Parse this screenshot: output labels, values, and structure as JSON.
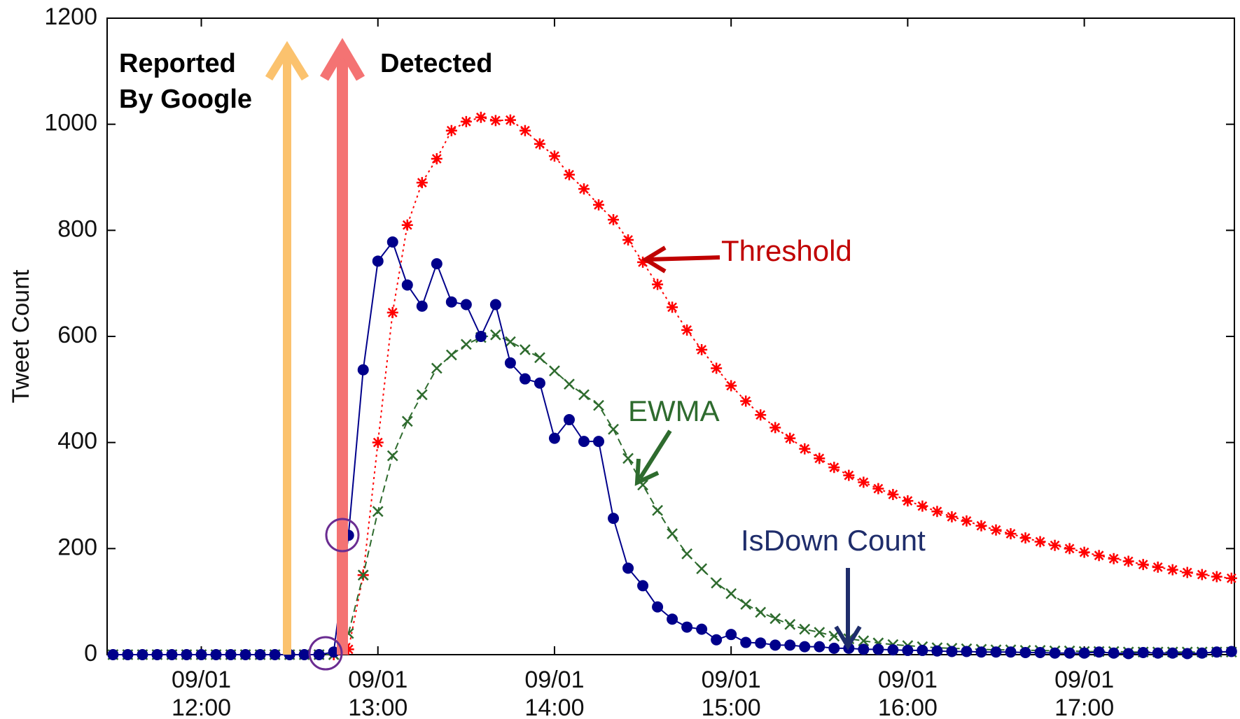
{
  "chart_data": {
    "type": "line",
    "y_label": "Tweet Count",
    "annotations": [
      "Reported",
      "By Google",
      "Detected"
    ],
    "x": [
      "09/01 11:30",
      "09/01 11:35",
      "09/01 11:40",
      "09/01 11:45",
      "09/01 11:50",
      "09/01 11:55",
      "09/01 12:00",
      "09/01 12:05",
      "09/01 12:10",
      "09/01 12:15",
      "09/01 12:20",
      "09/01 12:25",
      "09/01 12:30",
      "09/01 12:35",
      "09/01 12:40",
      "09/01 12:45",
      "09/01 12:50",
      "09/01 12:55",
      "09/01 13:00",
      "09/01 13:05",
      "09/01 13:10",
      "09/01 13:15",
      "09/01 13:20",
      "09/01 13:25",
      "09/01 13:30",
      "09/01 13:35",
      "09/01 13:40",
      "09/01 13:45",
      "09/01 13:50",
      "09/01 13:55",
      "09/01 14:00",
      "09/01 14:05",
      "09/01 14:10",
      "09/01 14:15",
      "09/01 14:20",
      "09/01 14:25",
      "09/01 14:30",
      "09/01 14:35",
      "09/01 14:40",
      "09/01 14:45",
      "09/01 14:50",
      "09/01 14:55",
      "09/01 15:00",
      "09/01 15:05",
      "09/01 15:10",
      "09/01 15:15",
      "09/01 15:20",
      "09/01 15:25",
      "09/01 15:30",
      "09/01 15:35",
      "09/01 15:40",
      "09/01 15:45",
      "09/01 15:50",
      "09/01 15:55",
      "09/01 16:00",
      "09/01 16:05",
      "09/01 16:10",
      "09/01 16:15",
      "09/01 16:20",
      "09/01 16:25",
      "09/01 16:30",
      "09/01 16:35",
      "09/01 16:40",
      "09/01 16:45",
      "09/01 16:50",
      "09/01 16:55",
      "09/01 17:00",
      "09/01 17:05",
      "09/01 17:10",
      "09/01 17:15",
      "09/01 17:20",
      "09/01 17:25",
      "09/01 17:30",
      "09/01 17:35",
      "09/01 17:40",
      "09/01 17:45",
      "09/01 17:50"
    ],
    "series": [
      {
        "name": "Threshold",
        "color": "#ff0000",
        "marker": "star",
        "line_style": "dotted",
        "values": [
          0,
          0,
          0,
          0,
          0,
          0,
          0,
          0,
          0,
          0,
          0,
          0,
          0,
          0,
          0,
          0,
          10,
          150,
          400,
          645,
          810,
          890,
          935,
          988,
          1005,
          1013,
          1007,
          1008,
          988,
          963,
          940,
          905,
          878,
          848,
          820,
          782,
          740,
          698,
          655,
          612,
          575,
          540,
          507,
          478,
          452,
          428,
          408,
          388,
          370,
          353,
          338,
          325,
          313,
          302,
          290,
          280,
          270,
          260,
          252,
          243,
          235,
          228,
          220,
          213,
          206,
          200,
          193,
          187,
          181,
          176,
          170,
          165,
          160,
          155,
          151,
          147,
          144
        ]
      },
      {
        "name": "EWMA",
        "color": "#2e6b2e",
        "marker": "cross",
        "line_style": "dashed",
        "values": [
          0,
          0,
          0,
          0,
          0,
          0,
          0,
          0,
          0,
          0,
          0,
          0,
          0,
          0,
          0,
          0,
          40,
          150,
          270,
          375,
          440,
          490,
          540,
          565,
          585,
          598,
          603,
          590,
          575,
          560,
          535,
          510,
          490,
          470,
          425,
          370,
          320,
          272,
          228,
          190,
          162,
          135,
          115,
          95,
          80,
          68,
          57,
          48,
          42,
          35,
          30,
          26,
          22,
          19,
          17,
          15,
          13,
          12,
          11,
          10,
          9,
          9,
          8,
          8,
          7,
          7,
          6,
          6,
          6,
          5,
          5,
          5,
          5,
          5,
          5,
          5,
          5
        ]
      },
      {
        "name": "IsDown Count",
        "color": "#00008b",
        "marker": "circle",
        "line_style": "solid",
        "values": [
          0,
          0,
          0,
          0,
          0,
          0,
          0,
          0,
          0,
          0,
          0,
          0,
          0,
          0,
          0,
          5,
          225,
          537,
          742,
          778,
          697,
          657,
          737,
          665,
          660,
          600,
          660,
          550,
          520,
          512,
          408,
          443,
          402,
          402,
          257,
          163,
          130,
          90,
          67,
          52,
          48,
          28,
          38,
          23,
          22,
          18,
          18,
          15,
          15,
          12,
          12,
          10,
          10,
          9,
          8,
          8,
          7,
          6,
          6,
          5,
          5,
          5,
          4,
          4,
          3,
          3,
          3,
          5,
          3,
          2,
          4,
          3,
          3,
          2,
          3,
          5,
          6
        ]
      }
    ],
    "xlim": [
      "09/01 11:28",
      "09/01 17:51"
    ],
    "xticks": [
      "09/01 12:00",
      "09/01 13:00",
      "09/01 14:00",
      "09/01 15:00",
      "09/01 16:00",
      "09/01 17:00"
    ],
    "ylim": [
      0,
      1200
    ],
    "yticks": [
      0,
      200,
      400,
      600,
      800,
      1000,
      1200
    ],
    "grid": false
  }
}
